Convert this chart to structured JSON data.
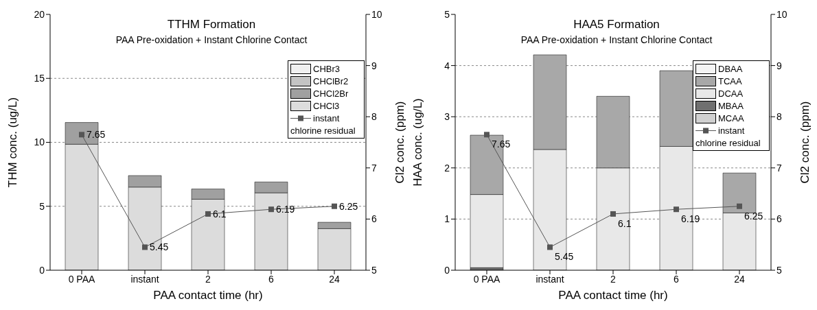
{
  "chart_data": [
    {
      "type": "bar",
      "stacked": true,
      "title": "TTHM Formation",
      "subtitle": "PAA Pre-oxidation + Instant Chlorine Contact",
      "xlabel": "PAA contact time (hr)",
      "ylabel": "THM conc. (ug/L)",
      "y2label": "Cl2 conc. (ppm)",
      "categories": [
        "0 PAA",
        "instant",
        "2",
        "6",
        "24"
      ],
      "ylim": [
        0,
        20
      ],
      "yticks": [
        0,
        5,
        10,
        15,
        20
      ],
      "y2lim": [
        5,
        10
      ],
      "y2ticks": [
        5,
        6,
        7,
        8,
        9,
        10
      ],
      "grid": "y",
      "legend": "top right",
      "series": [
        {
          "name": "CHCl3",
          "color": "#dcdcdc",
          "values": [
            9.85,
            6.5,
            5.55,
            6.05,
            3.25
          ]
        },
        {
          "name": "CHCl2Br",
          "color": "#a0a0a0",
          "values": [
            1.7,
            0.9,
            0.8,
            0.85,
            0.5
          ]
        },
        {
          "name": "CHClBr2",
          "color": "#c4c4c4",
          "values": [
            0,
            0,
            0,
            0,
            0
          ]
        },
        {
          "name": "CHBr3",
          "color": "#f0f0f0",
          "values": [
            0,
            0,
            0,
            0,
            0
          ]
        },
        {
          "name": "instant chlorine residual",
          "type": "line",
          "axis": "y2",
          "color": "#555555",
          "marker": "square",
          "values": [
            7.65,
            5.45,
            6.1,
            6.19,
            6.25
          ],
          "value_labels": [
            "7.65",
            "5.45",
            "6.1",
            "6.19",
            "6.25"
          ]
        }
      ]
    },
    {
      "type": "bar",
      "stacked": true,
      "title": "HAA5 Formation",
      "subtitle": "PAA Pre-oxidation + Instant Chlorine Contact",
      "xlabel": "PAA contact time (hr)",
      "ylabel": "HAA conc. (ug/L)",
      "y2label": "Cl2 conc. (ppm)",
      "categories": [
        "0 PAA",
        "instant",
        "2",
        "6",
        "24"
      ],
      "ylim": [
        0,
        5
      ],
      "yticks": [
        0,
        1,
        2,
        3,
        4,
        5
      ],
      "y2lim": [
        5,
        10
      ],
      "y2ticks": [
        5,
        6,
        7,
        8,
        9,
        10
      ],
      "grid": "y",
      "legend": "top right",
      "series": [
        {
          "name": "MCAA",
          "color": "#d0d0d0",
          "values": [
            0,
            0,
            0,
            0,
            0
          ]
        },
        {
          "name": "MBAA",
          "color": "#707070",
          "values": [
            0.05,
            0,
            0,
            0,
            null
          ]
        },
        {
          "name": "DCAA",
          "color": "#e8e8e8",
          "values": [
            1.43,
            2.36,
            2.0,
            2.42,
            1.12
          ]
        },
        {
          "name": "TCAA",
          "color": "#a8a8a8",
          "values": [
            1.16,
            1.85,
            1.4,
            1.48,
            0.78
          ]
        },
        {
          "name": "DBAA",
          "color": "#f4f4f4",
          "values": [
            0,
            0,
            0,
            0,
            0
          ]
        },
        {
          "name": "instant chlorine residual",
          "type": "line",
          "axis": "y2",
          "color": "#555555",
          "marker": "square",
          "values": [
            7.65,
            5.45,
            6.1,
            6.19,
            6.25
          ],
          "value_labels": [
            "7.65",
            "5.45",
            "6.1",
            "6.19",
            "6.25"
          ]
        }
      ]
    }
  ]
}
